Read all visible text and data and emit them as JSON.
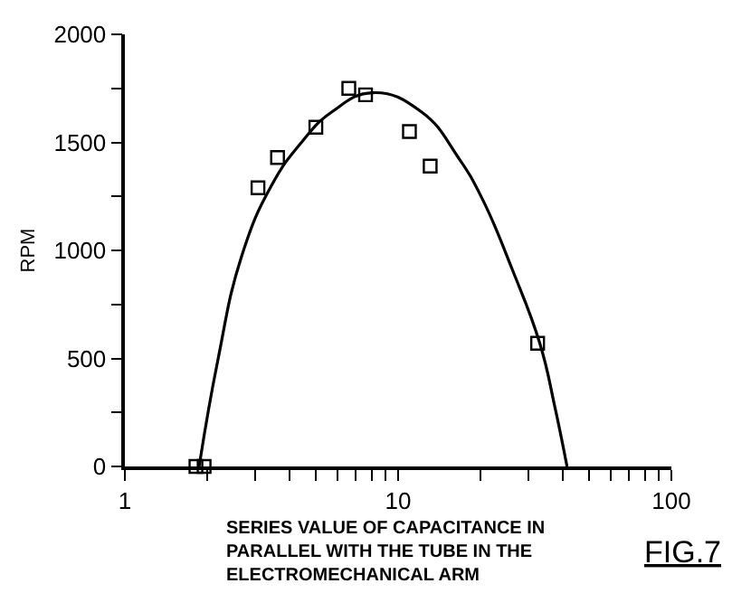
{
  "chart_data": {
    "type": "scatter",
    "xlabel": "SERIES VALUE OF CAPACITANCE IN PARALLEL WITH THE TUBE IN THE ELECTROMECHANICAL ARM",
    "ylabel": "RPM",
    "annotations": [
      "FIG.7"
    ],
    "log": "x",
    "marker": "square",
    "xlim": [
      1,
      100
    ],
    "xticks": [
      1,
      {
        "value": 2,
        "label": null
      },
      {
        "value": 3,
        "label": null
      },
      {
        "value": 4,
        "label": null
      },
      {
        "value": 5,
        "label": null
      },
      {
        "value": 6,
        "label": null
      },
      {
        "value": 7,
        "label": null
      },
      {
        "value": 8,
        "label": null
      },
      {
        "value": 9,
        "label": null
      },
      10,
      {
        "value": 20,
        "label": null
      },
      {
        "value": 30,
        "label": null
      },
      {
        "value": 40,
        "label": null
      },
      {
        "value": 50,
        "label": null
      },
      {
        "value": 60,
        "label": null
      },
      {
        "value": 70,
        "label": null
      },
      {
        "value": 80,
        "label": null
      },
      {
        "value": 90,
        "label": null
      },
      100
    ],
    "ylim": [
      0,
      2000
    ],
    "yticks": [
      0,
      {
        "value": 250,
        "label": null
      },
      500,
      {
        "value": 750,
        "label": null
      },
      1000,
      {
        "value": 1250,
        "label": null
      },
      1500,
      {
        "value": 1750,
        "label": null
      },
      2000
    ],
    "series": [
      {
        "color": "#000000",
        "x": [
          1.82,
          1.95,
          3.07,
          3.62,
          5.0,
          6.6,
          7.6,
          11.0,
          13.1,
          32.4
        ],
        "values": [
          0,
          0,
          1290,
          1430,
          1570,
          1750,
          1720,
          1550,
          1390,
          570
        ]
      },
      {
        "type": "line",
        "color": "#000000",
        "marker": "none",
        "x": [
          1.87,
          2.18,
          2.67,
          3.44,
          4.43,
          5.71,
          8.1,
          12.2,
          16.6,
          20.3,
          26.2,
          33.0,
          37.4,
          41.5
        ],
        "values": [
          0,
          480,
          970,
          1300,
          1500,
          1640,
          1730,
          1640,
          1430,
          1240,
          910,
          570,
          280,
          0
        ]
      }
    ]
  }
}
